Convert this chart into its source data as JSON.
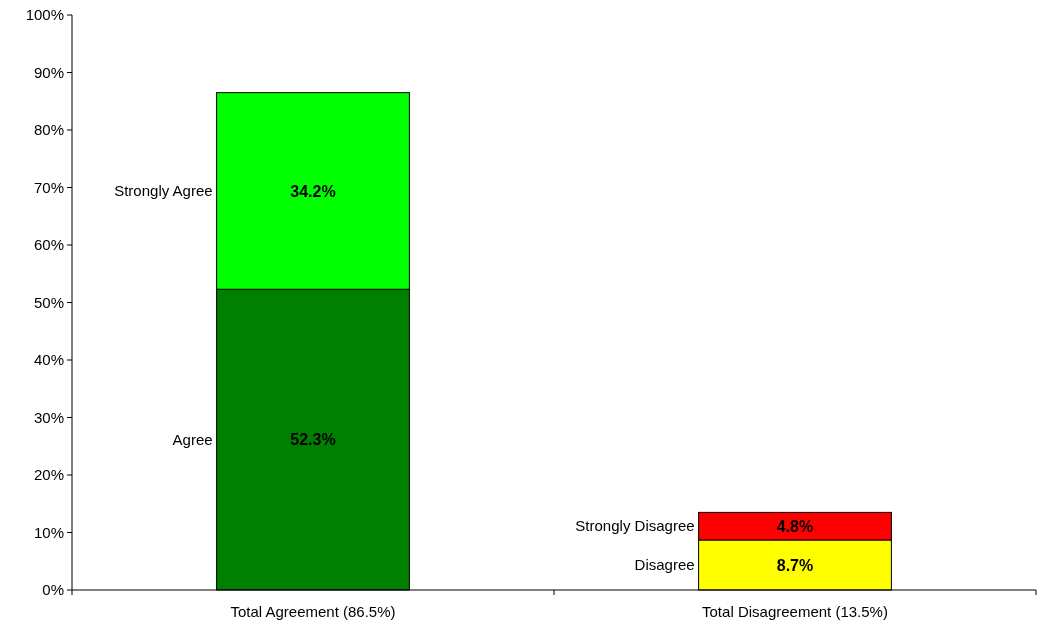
{
  "chart_data": {
    "type": "bar",
    "stacked": true,
    "categories": [
      "Total Agreement (86.5%)",
      "Total Disagreement (13.5%)"
    ],
    "series": [
      {
        "name": "Agree",
        "color": "#008000",
        "values": [
          52.3,
          null
        ],
        "value_labels": [
          "52.3%",
          null
        ]
      },
      {
        "name": "Strongly Agree",
        "color": "#00ff00",
        "values": [
          34.2,
          null
        ],
        "value_labels": [
          "34.2%",
          null
        ]
      },
      {
        "name": "Disagree",
        "color": "#ffff00",
        "values": [
          null,
          8.7
        ],
        "value_labels": [
          null,
          "8.7%"
        ]
      },
      {
        "name": "Strongly Disagree",
        "color": "#ff0000",
        "values": [
          null,
          4.8
        ],
        "value_labels": [
          null,
          "4.8%"
        ]
      }
    ],
    "ylim": [
      0,
      100
    ],
    "yticks": [
      {
        "value": 0,
        "label": "0%"
      },
      {
        "value": 10,
        "label": "10%"
      },
      {
        "value": 20,
        "label": "20%"
      },
      {
        "value": 30,
        "label": "30%"
      },
      {
        "value": 40,
        "label": "40%"
      },
      {
        "value": 50,
        "label": "50%"
      },
      {
        "value": 60,
        "label": "60%"
      },
      {
        "value": 70,
        "label": "70%"
      },
      {
        "value": 80,
        "label": "80%"
      },
      {
        "value": 90,
        "label": "90%"
      },
      {
        "value": 100,
        "label": "100%"
      }
    ],
    "grid": false
  }
}
